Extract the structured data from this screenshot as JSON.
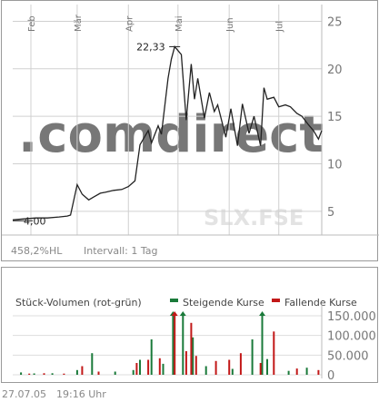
{
  "price_chart": {
    "months": [
      "Feb",
      "Mär",
      "Apr",
      "Mai",
      "Jun",
      "Jul"
    ],
    "y_ticks": [
      "5",
      "10",
      "15",
      "20",
      "25"
    ],
    "high_label": "22,33",
    "low_label": "4,00",
    "watermark": ".comdirect",
    "symbol": "SLX.FSE",
    "perf_label": "458,2%HL",
    "interval_label": "Intervall: 1 Tag",
    "colors": {
      "line": "#222222",
      "grid": "#d0d0d0",
      "watermark": "#f5e3b0",
      "symbol": "#e3e3e3"
    }
  },
  "volume_chart": {
    "title": "Stück-Volumen (rot-grün)",
    "legend_up": "Steigende Kurse",
    "legend_down": "Fallende Kurse",
    "y_ticks": [
      "0",
      "50.000",
      "100.000",
      "150.000"
    ],
    "colors": {
      "up": "#1a7a3a",
      "down": "#c21818"
    }
  },
  "footer": {
    "date": "27.07.05",
    "time": "19:16 Uhr"
  },
  "chart_data": [
    {
      "type": "line",
      "ylim": [
        2.5,
        26
      ],
      "x_range": [
        "2005-01-21",
        "2005-07-27"
      ],
      "high": {
        "date": "2005-04-29",
        "value": 22.33
      },
      "low": {
        "date": "2005-01-21",
        "value": 4.0
      },
      "series": [
        {
          "x": [
            "2005-01-21",
            "2005-01-28",
            "2005-02-04",
            "2005-02-11",
            "2005-02-18",
            "2005-02-23",
            "2005-02-25",
            "2005-03-01",
            "2005-03-04",
            "2005-03-08",
            "2005-03-11",
            "2005-03-15",
            "2005-03-18",
            "2005-03-23",
            "2005-03-28",
            "2005-04-01",
            "2005-04-05",
            "2005-04-08",
            "2005-04-13",
            "2005-04-15",
            "2005-04-19",
            "2005-04-21",
            "2005-04-25",
            "2005-04-27",
            "2005-04-29",
            "2005-05-03",
            "2005-05-06",
            "2005-05-09",
            "2005-05-11",
            "2005-05-13",
            "2005-05-17",
            "2005-05-20",
            "2005-05-23",
            "2005-05-25",
            "2005-05-30",
            "2005-06-02",
            "2005-06-06",
            "2005-06-09",
            "2005-06-13",
            "2005-06-16",
            "2005-06-20",
            "2005-06-22",
            "2005-06-24",
            "2005-06-28",
            "2005-07-01",
            "2005-07-05",
            "2005-07-08",
            "2005-07-12",
            "2005-07-15",
            "2005-07-19",
            "2005-07-22",
            "2005-07-25",
            "2005-07-27"
          ],
          "y": [
            4.1,
            4.2,
            4.3,
            4.3,
            4.4,
            4.5,
            4.6,
            7.8,
            6.8,
            6.2,
            6.5,
            6.9,
            7.0,
            7.2,
            7.3,
            7.6,
            8.2,
            12.0,
            13.5,
            12.2,
            14.0,
            13.1,
            19.0,
            21.0,
            22.33,
            21.5,
            14.6,
            20.5,
            16.8,
            19.0,
            14.8,
            17.5,
            15.5,
            16.2,
            12.8,
            15.8,
            11.9,
            16.3,
            13.2,
            15.0,
            11.9,
            18.0,
            16.8,
            17.0,
            16.0,
            16.2,
            16.0,
            15.3,
            15.0,
            14.1,
            13.5,
            12.6,
            13.5
          ]
        }
      ]
    },
    {
      "type": "bar",
      "ylim": [
        0,
        180000
      ],
      "x_range": [
        "2005-01-21",
        "2005-07-27"
      ],
      "series": [
        {
          "name": "Steigende Kurse",
          "x": [
            "2005-01-26",
            "2005-02-03",
            "2005-02-14",
            "2005-03-01",
            "2005-03-10",
            "2005-03-24",
            "2005-04-04",
            "2005-04-08",
            "2005-04-15",
            "2005-04-22",
            "2005-04-28",
            "2005-05-04",
            "2005-05-10",
            "2005-05-18",
            "2005-06-03",
            "2005-06-15",
            "2005-06-21",
            "2005-06-24",
            "2005-07-07",
            "2005-07-18"
          ],
          "values": [
            6000,
            3500,
            4000,
            12000,
            55000,
            8000,
            12000,
            38000,
            90000,
            28000,
            150000,
            150000,
            95000,
            22000,
            15000,
            90000,
            150000,
            40000,
            10000,
            18000
          ]
        },
        {
          "name": "Fallende Kurse",
          "x": [
            "2005-01-31",
            "2005-02-09",
            "2005-02-21",
            "2005-03-04",
            "2005-03-14",
            "2005-04-06",
            "2005-04-13",
            "2005-04-20",
            "2005-04-29",
            "2005-05-06",
            "2005-05-09",
            "2005-05-12",
            "2005-05-24",
            "2005-06-01",
            "2005-06-08",
            "2005-06-20",
            "2005-06-28",
            "2005-07-12",
            "2005-07-25"
          ],
          "values": [
            3000,
            4000,
            3000,
            22000,
            8000,
            30000,
            38000,
            42000,
            150000,
            60000,
            132000,
            48000,
            35000,
            38000,
            55000,
            30000,
            110000,
            16000,
            12000
          ]
        }
      ]
    }
  ]
}
